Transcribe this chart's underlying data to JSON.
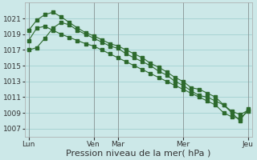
{
  "bg_color": "#cce8e8",
  "grid_color": "#99cccc",
  "line_color": "#2d6a2d",
  "marker_color": "#2d6a2d",
  "xlabel": "Pression niveau de la mer( hPa )",
  "xlabel_fontsize": 8,
  "tick_fontsize": 6.5,
  "ylim": [
    1006.0,
    1023.0
  ],
  "yticks": [
    1007,
    1009,
    1011,
    1013,
    1015,
    1017,
    1019,
    1021
  ],
  "x_day_labels": [
    "Lun",
    "Ven",
    "Mar",
    "Mer",
    "Jeu"
  ],
  "x_day_positions": [
    0,
    8,
    11,
    19,
    27
  ],
  "vline_positions": [
    0,
    8,
    11,
    19,
    27
  ],
  "series1_x": [
    0,
    1,
    2,
    3,
    4,
    5,
    6,
    7,
    8,
    9,
    10,
    11,
    12,
    13,
    14,
    15,
    16,
    17,
    18,
    19,
    20,
    21,
    22,
    23,
    24,
    25,
    26,
    27
  ],
  "series1_y": [
    1018.2,
    1019.8,
    1020.0,
    1019.5,
    1019.0,
    1018.6,
    1018.2,
    1017.8,
    1017.5,
    1017.0,
    1016.5,
    1016.0,
    1015.5,
    1015.0,
    1014.5,
    1014.0,
    1013.5,
    1013.0,
    1012.5,
    1012.0,
    1011.5,
    1011.0,
    1010.5,
    1010.0,
    1009.0,
    1008.5,
    1008.3,
    1009.2
  ],
  "series2_x": [
    0,
    1,
    2,
    3,
    4,
    5,
    6,
    7,
    8,
    9,
    10,
    11,
    12,
    13,
    14,
    15,
    16,
    17,
    18,
    19,
    20,
    21,
    22,
    23,
    24,
    25,
    26,
    27
  ],
  "series2_y": [
    1019.5,
    1020.8,
    1021.5,
    1021.8,
    1021.2,
    1020.5,
    1019.8,
    1019.2,
    1018.8,
    1018.3,
    1017.8,
    1017.5,
    1017.0,
    1016.5,
    1016.0,
    1015.3,
    1014.8,
    1014.2,
    1013.5,
    1013.0,
    1012.2,
    1012.0,
    1011.5,
    1011.0,
    1010.0,
    1009.2,
    1008.8,
    1009.3
  ],
  "series3_x": [
    0,
    1,
    2,
    3,
    4,
    5,
    6,
    7,
    8,
    9,
    10,
    11,
    12,
    13,
    14,
    15,
    16,
    17,
    18,
    19,
    20,
    21,
    22,
    23,
    24,
    25,
    26,
    27
  ],
  "series3_y": [
    1017.0,
    1017.3,
    1018.5,
    1019.8,
    1020.5,
    1020.2,
    1019.5,
    1019.0,
    1018.5,
    1018.0,
    1017.5,
    1017.2,
    1016.5,
    1016.0,
    1015.5,
    1015.0,
    1014.3,
    1013.8,
    1013.0,
    1012.5,
    1011.8,
    1011.2,
    1011.0,
    1010.5,
    1010.0,
    1009.0,
    1008.0,
    1009.5
  ]
}
